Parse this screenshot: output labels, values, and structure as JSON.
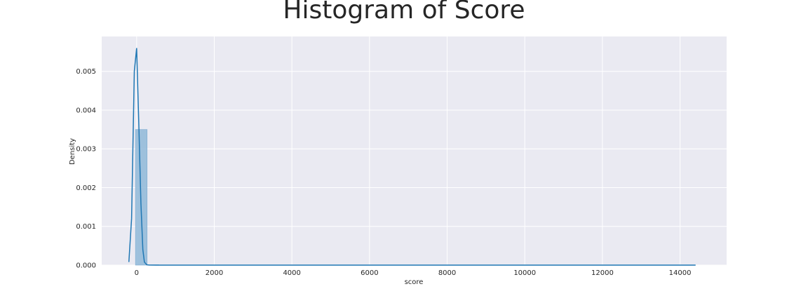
{
  "chart_data": {
    "type": "bar",
    "title": "Histogram of Score",
    "xlabel": "score",
    "ylabel": "Density",
    "xlim": [
      -900,
      15200
    ],
    "ylim": [
      0,
      0.0059
    ],
    "grid": true,
    "x_ticks": [
      0,
      2000,
      4000,
      6000,
      8000,
      10000,
      12000,
      14000
    ],
    "x_tick_labels": [
      "0",
      "2000",
      "4000",
      "6000",
      "8000",
      "10000",
      "12000",
      "14000"
    ],
    "y_ticks": [
      0,
      0.001,
      0.002,
      0.003,
      0.004,
      0.005
    ],
    "y_tick_labels": [
      "0.000",
      "0.001",
      "0.002",
      "0.003",
      "0.004",
      "0.005"
    ],
    "bins": [
      {
        "x0": -30,
        "x1": 270,
        "density": 0.0035
      },
      {
        "x0": 270,
        "x1": 570,
        "density": 1e-05
      }
    ],
    "kde": {
      "x": [
        -200,
        -130,
        -60,
        0,
        60,
        110,
        160,
        200,
        260,
        320,
        500,
        14400
      ],
      "y": [
        8e-05,
        0.0012,
        0.005,
        0.0056,
        0.0035,
        0.0016,
        0.0004,
        8e-05,
        1e-05,
        2e-06,
        1e-06,
        1e-06
      ]
    },
    "colors": {
      "background": "#eaeaf2",
      "grid": "#ffffff",
      "bar": "#8fb8d8",
      "bar_edge": "#7fabd0",
      "line": "#1f77b4"
    }
  }
}
